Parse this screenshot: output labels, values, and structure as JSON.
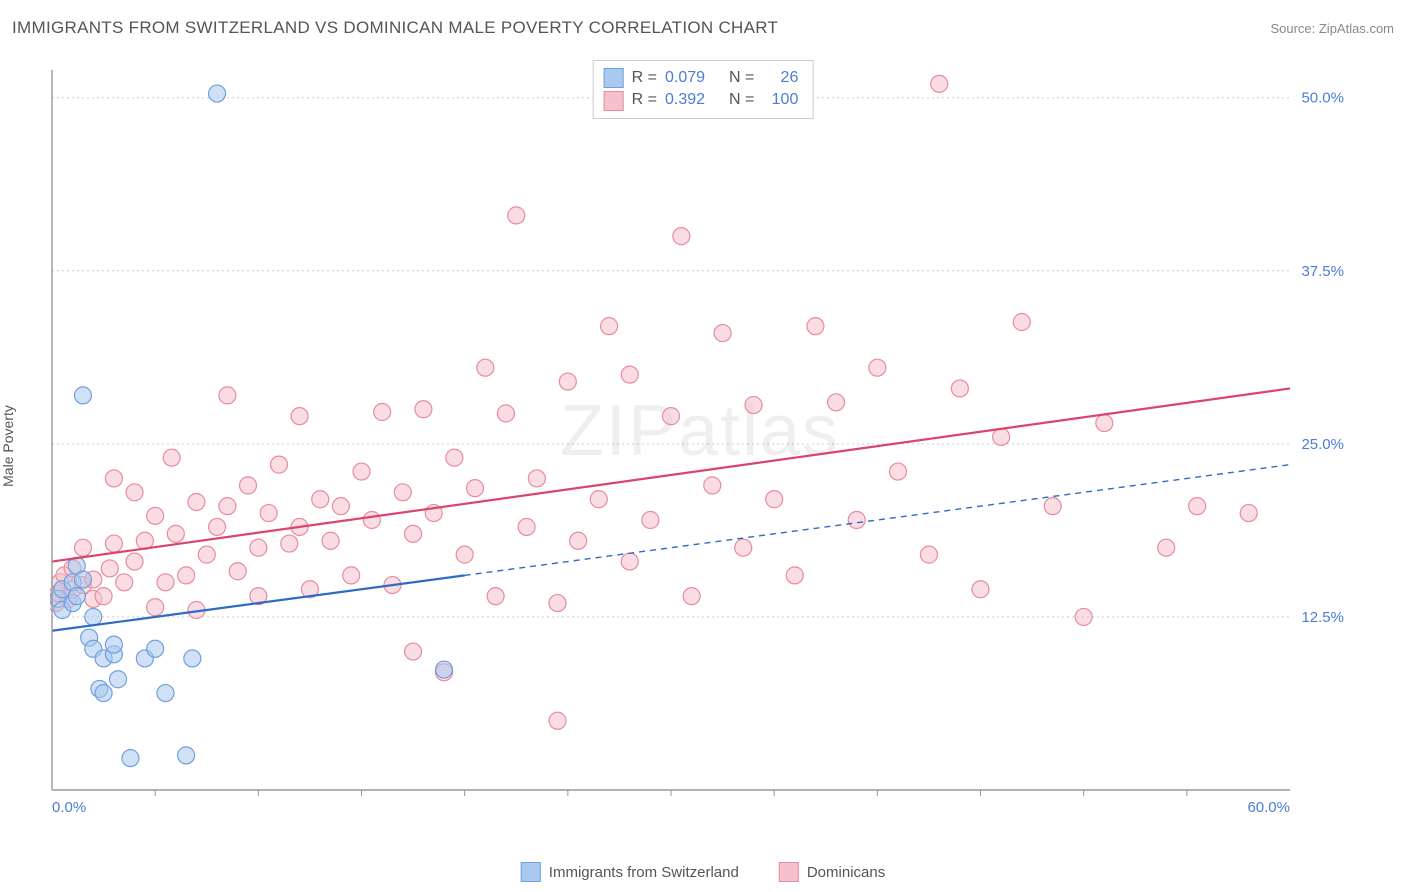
{
  "title": "IMMIGRANTS FROM SWITZERLAND VS DOMINICAN MALE POVERTY CORRELATION CHART",
  "source": "Source: ZipAtlas.com",
  "ylabel": "Male Poverty",
  "watermark": "ZIPatlas",
  "chart": {
    "type": "scatter",
    "xlim": [
      0,
      60
    ],
    "ylim": [
      0,
      52
    ],
    "y_ticks": [
      12.5,
      25.0,
      37.5,
      50.0
    ],
    "y_tick_labels": [
      "12.5%",
      "25.0%",
      "37.5%",
      "50.0%"
    ],
    "x_ticks": [
      0,
      30,
      60
    ],
    "x_tick_labels": [
      "0.0%",
      "",
      "60.0%"
    ],
    "x_minor_ticks": [
      5,
      10,
      15,
      20,
      25,
      30,
      35,
      40,
      45,
      50,
      55
    ],
    "background_color": "#ffffff",
    "grid_color": "#cccccc",
    "axis_color": "#999999",
    "marker_radius": 8.5,
    "marker_opacity": 0.55,
    "series": [
      {
        "name": "Immigrants from Switzerland",
        "short": "switzerland",
        "fill": "#a9c9ee",
        "stroke": "#6fa0dd",
        "R": "0.079",
        "N": "26",
        "trend": {
          "color": "#2d6bc5",
          "width": 2.2,
          "style": "solid",
          "x1": 0,
          "y1": 11.5,
          "x2": 20,
          "y2": 15.5,
          "dash_from_x": 20,
          "dash_to_x": 60,
          "dash_y2": 23.5
        },
        "points": [
          [
            0.3,
            13.8
          ],
          [
            0.5,
            14.5
          ],
          [
            0.5,
            13.0
          ],
          [
            1.0,
            15.0
          ],
          [
            1.0,
            13.5
          ],
          [
            1.2,
            14.0
          ],
          [
            1.2,
            16.2
          ],
          [
            1.5,
            15.2
          ],
          [
            1.8,
            11.0
          ],
          [
            2.0,
            10.2
          ],
          [
            2.0,
            12.5
          ],
          [
            2.3,
            7.3
          ],
          [
            2.5,
            7.0
          ],
          [
            2.5,
            9.5
          ],
          [
            3.0,
            9.8
          ],
          [
            3.2,
            8.0
          ],
          [
            3.0,
            10.5
          ],
          [
            3.8,
            2.3
          ],
          [
            4.5,
            9.5
          ],
          [
            5.0,
            10.2
          ],
          [
            5.5,
            7.0
          ],
          [
            6.5,
            2.5
          ],
          [
            6.8,
            9.5
          ],
          [
            8.0,
            50.3
          ],
          [
            19.0,
            8.7
          ],
          [
            1.5,
            28.5
          ]
        ]
      },
      {
        "name": "Dominicans",
        "short": "dominicans",
        "fill": "#f6c1cc",
        "stroke": "#e88ba0",
        "R": "0.392",
        "N": "100",
        "trend": {
          "color": "#d9456e",
          "width": 2.2,
          "style": "solid",
          "x1": 0,
          "y1": 16.5,
          "x2": 60,
          "y2": 29.0
        },
        "points": [
          [
            0.2,
            13.5
          ],
          [
            0.3,
            14.2
          ],
          [
            0.4,
            15.0
          ],
          [
            0.6,
            15.5
          ],
          [
            0.8,
            13.8
          ],
          [
            1.0,
            14.5
          ],
          [
            1.0,
            16.0
          ],
          [
            1.5,
            14.8
          ],
          [
            1.5,
            17.5
          ],
          [
            2.0,
            13.8
          ],
          [
            2.0,
            15.2
          ],
          [
            2.5,
            14.0
          ],
          [
            2.8,
            16.0
          ],
          [
            3.0,
            17.8
          ],
          [
            3.0,
            22.5
          ],
          [
            3.5,
            15.0
          ],
          [
            4.0,
            16.5
          ],
          [
            4.0,
            21.5
          ],
          [
            4.5,
            18.0
          ],
          [
            5.0,
            13.2
          ],
          [
            5.0,
            19.8
          ],
          [
            5.5,
            15.0
          ],
          [
            5.8,
            24.0
          ],
          [
            6.0,
            18.5
          ],
          [
            6.5,
            15.5
          ],
          [
            7.0,
            20.8
          ],
          [
            7.0,
            13.0
          ],
          [
            7.5,
            17.0
          ],
          [
            8.0,
            19.0
          ],
          [
            8.5,
            20.5
          ],
          [
            8.5,
            28.5
          ],
          [
            9.0,
            15.8
          ],
          [
            9.5,
            22.0
          ],
          [
            10.0,
            17.5
          ],
          [
            10.0,
            14.0
          ],
          [
            10.5,
            20.0
          ],
          [
            11.0,
            23.5
          ],
          [
            11.5,
            17.8
          ],
          [
            12.0,
            19.0
          ],
          [
            12.0,
            27.0
          ],
          [
            12.5,
            14.5
          ],
          [
            13.0,
            21.0
          ],
          [
            13.5,
            18.0
          ],
          [
            14.0,
            20.5
          ],
          [
            14.5,
            15.5
          ],
          [
            15.0,
            23.0
          ],
          [
            15.5,
            19.5
          ],
          [
            16.0,
            27.3
          ],
          [
            16.5,
            14.8
          ],
          [
            17.0,
            21.5
          ],
          [
            17.5,
            18.5
          ],
          [
            17.5,
            10.0
          ],
          [
            18.0,
            27.5
          ],
          [
            18.5,
            20.0
          ],
          [
            19.0,
            8.5
          ],
          [
            19.5,
            24.0
          ],
          [
            20.0,
            17.0
          ],
          [
            20.5,
            21.8
          ],
          [
            21.0,
            30.5
          ],
          [
            21.5,
            14.0
          ],
          [
            22.0,
            27.2
          ],
          [
            22.5,
            41.5
          ],
          [
            23.0,
            19.0
          ],
          [
            23.5,
            22.5
          ],
          [
            24.5,
            13.5
          ],
          [
            24.5,
            5.0
          ],
          [
            25.0,
            29.5
          ],
          [
            25.5,
            18.0
          ],
          [
            26.5,
            21.0
          ],
          [
            27.0,
            33.5
          ],
          [
            28.0,
            16.5
          ],
          [
            28.0,
            30.0
          ],
          [
            29.0,
            19.5
          ],
          [
            30.0,
            27.0
          ],
          [
            30.5,
            40.0
          ],
          [
            31.0,
            14.0
          ],
          [
            32.0,
            22.0
          ],
          [
            32.5,
            33.0
          ],
          [
            33.5,
            17.5
          ],
          [
            34.0,
            27.8
          ],
          [
            35.0,
            21.0
          ],
          [
            35.5,
            51.0
          ],
          [
            36.0,
            15.5
          ],
          [
            37.0,
            33.5
          ],
          [
            38.0,
            28.0
          ],
          [
            39.0,
            19.5
          ],
          [
            40.0,
            30.5
          ],
          [
            41.0,
            23.0
          ],
          [
            42.5,
            17.0
          ],
          [
            43.0,
            51.0
          ],
          [
            44.0,
            29.0
          ],
          [
            45.0,
            14.5
          ],
          [
            46.0,
            25.5
          ],
          [
            47.0,
            33.8
          ],
          [
            48.5,
            20.5
          ],
          [
            50.0,
            12.5
          ],
          [
            51.0,
            26.5
          ],
          [
            54.0,
            17.5
          ],
          [
            55.5,
            20.5
          ],
          [
            58.0,
            20.0
          ]
        ]
      }
    ]
  },
  "legend_bottom": [
    {
      "label": "Immigrants from Switzerland",
      "fill": "#a9c9ee",
      "stroke": "#6fa0dd"
    },
    {
      "label": "Dominicans",
      "fill": "#f6c1cc",
      "stroke": "#e88ba0"
    }
  ],
  "corr_legend": [
    {
      "fill": "#a9c9ee",
      "stroke": "#6fa0dd",
      "R": "0.079",
      "N": "26"
    },
    {
      "fill": "#f6c1cc",
      "stroke": "#e88ba0",
      "R": "0.392",
      "N": "100"
    }
  ]
}
